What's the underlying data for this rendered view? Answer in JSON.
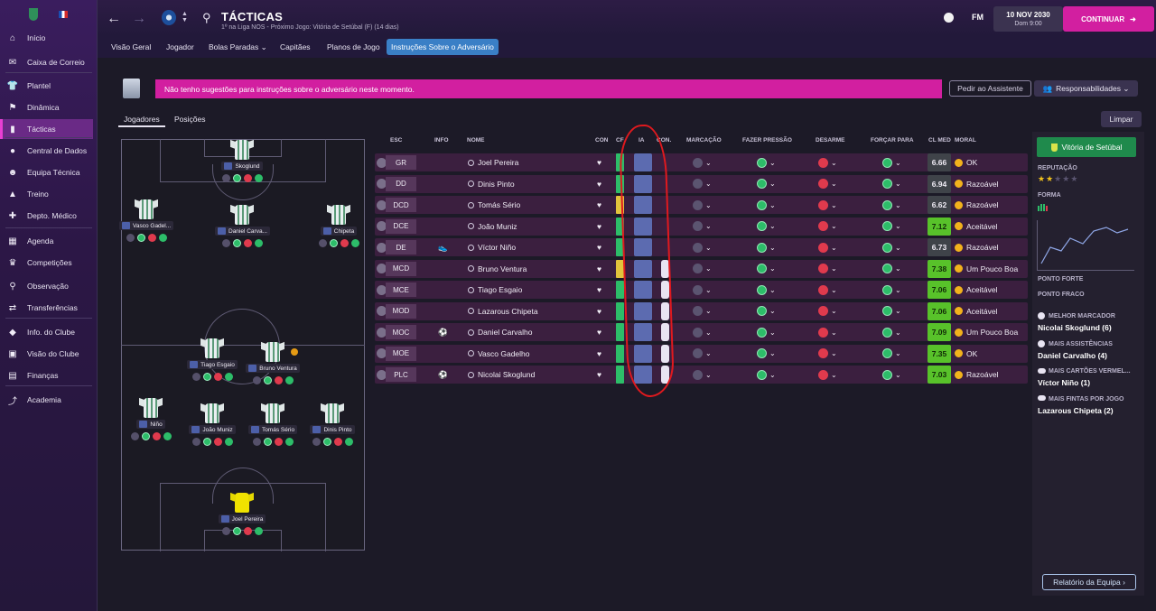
{
  "sidebar": {
    "items": [
      {
        "label": "Início",
        "icon": "home-icon"
      },
      {
        "label": "Caixa de Correio",
        "icon": "inbox-icon"
      },
      {
        "label": "Plantel",
        "icon": "shirt-icon"
      },
      {
        "label": "Dinâmica",
        "icon": "dynamics-icon"
      },
      {
        "label": "Tácticas",
        "icon": "tactics-icon"
      },
      {
        "label": "Central de Dados",
        "icon": "data-icon"
      },
      {
        "label": "Equipa Técnica",
        "icon": "staff-icon"
      },
      {
        "label": "Treino",
        "icon": "training-icon"
      },
      {
        "label": "Depto. Médico",
        "icon": "medical-icon"
      },
      {
        "label": "Agenda",
        "icon": "calendar-icon"
      },
      {
        "label": "Competições",
        "icon": "trophy-icon"
      },
      {
        "label": "Observação",
        "icon": "scouting-icon"
      },
      {
        "label": "Transferências",
        "icon": "transfers-icon"
      },
      {
        "label": "Info. do Clube",
        "icon": "club-info-icon"
      },
      {
        "label": "Visão do Clube",
        "icon": "club-vision-icon"
      },
      {
        "label": "Finanças",
        "icon": "finances-icon"
      },
      {
        "label": "Academia",
        "icon": "academy-icon"
      }
    ]
  },
  "header": {
    "title": "TÁCTICAS",
    "subtitle": "1º na Liga NOS - Próximo Jogo: Vitória de Setúbal (F) (14 dias)",
    "fm_label": "FM",
    "date": "10 NOV 2030",
    "time": "Dom 9:00",
    "continue_label": "CONTINUAR"
  },
  "tabs": [
    {
      "label": "Visão Geral",
      "active": false
    },
    {
      "label": "Jogador",
      "active": false
    },
    {
      "label": "Bolas Paradas ⌄",
      "active": false
    },
    {
      "label": "Capitães",
      "active": false
    },
    {
      "label": "Planos de Jogo",
      "active": false
    },
    {
      "label": "Instruções Sobre o Adversário",
      "active": true
    }
  ],
  "assistant": {
    "message": "Não tenho sugestões para instruções sobre o adversário neste momento.",
    "ask_label": "Pedir ao Assistente",
    "responsibilities_label": "Responsabilidades ⌄"
  },
  "subtabs": {
    "players": "Jogadores",
    "positions": "Posições",
    "clear": "Limpar"
  },
  "pitch_players": [
    {
      "name": "Skoglund",
      "gk": false
    },
    {
      "name": "Vasco Gadel...",
      "gk": false
    },
    {
      "name": "Daniel Carva...",
      "gk": false
    },
    {
      "name": "Chipeta",
      "gk": false
    },
    {
      "name": "Tiago Esgaio",
      "gk": false
    },
    {
      "name": "Bruno Ventura",
      "gk": false
    },
    {
      "name": "Niño",
      "gk": false
    },
    {
      "name": "João Muniz",
      "gk": false
    },
    {
      "name": "Tomás Sério",
      "gk": false
    },
    {
      "name": "Dinis Pinto",
      "gk": false
    },
    {
      "name": "Joel Pereira",
      "gk": true
    }
  ],
  "table": {
    "headers": [
      "ESC",
      "INFO",
      "NOME",
      "CON",
      "CF",
      "IA",
      "CON.",
      "MARCAÇÃO",
      "FAZER PRESSÃO",
      "DESARME",
      "FORÇAR PARA",
      "CL MED",
      "MORAL"
    ],
    "rows": [
      {
        "pos": "GR",
        "name": "Joel Pereira",
        "cf": "g",
        "con": false,
        "info": "",
        "clmed": "6.66",
        "hi": false,
        "moral": "OK"
      },
      {
        "pos": "DD",
        "name": "Dinis Pinto",
        "cf": "g",
        "con": false,
        "info": "",
        "clmed": "6.94",
        "hi": false,
        "moral": "Razoável"
      },
      {
        "pos": "DCD",
        "name": "Tomás Sério",
        "cf": "y",
        "con": false,
        "info": "",
        "clmed": "6.62",
        "hi": false,
        "moral": "Razoável"
      },
      {
        "pos": "DCE",
        "name": "João Muniz",
        "cf": "g",
        "con": false,
        "info": "",
        "clmed": "7.12",
        "hi": true,
        "moral": "Aceitável"
      },
      {
        "pos": "DE",
        "name": "Víctor Niño",
        "cf": "g",
        "con": false,
        "info": "boot",
        "clmed": "6.73",
        "hi": false,
        "moral": "Razoável"
      },
      {
        "pos": "MCD",
        "name": "Bruno Ventura",
        "cf": "y",
        "con": true,
        "info": "",
        "clmed": "7.38",
        "hi": true,
        "moral": "Um Pouco Boa"
      },
      {
        "pos": "MCE",
        "name": "Tiago Esgaio",
        "cf": "g",
        "con": true,
        "info": "",
        "clmed": "7.06",
        "hi": true,
        "moral": "Aceitável"
      },
      {
        "pos": "MOD",
        "name": "Lazarous Chipeta",
        "cf": "g",
        "con": true,
        "info": "",
        "clmed": "7.06",
        "hi": true,
        "moral": "Aceitável"
      },
      {
        "pos": "MOC",
        "name": "Daniel Carvalho",
        "cf": "g",
        "con": true,
        "info": "assist",
        "clmed": "7.09",
        "hi": true,
        "moral": "Um Pouco Boa"
      },
      {
        "pos": "MOE",
        "name": "Vasco Gadelho",
        "cf": "g",
        "con": true,
        "info": "",
        "clmed": "7.35",
        "hi": true,
        "moral": "OK"
      },
      {
        "pos": "PLC",
        "name": "Nicolai Skoglund",
        "cf": "g",
        "con": true,
        "info": "ball",
        "clmed": "7.03",
        "hi": true,
        "moral": "Razoável"
      }
    ]
  },
  "right_panel": {
    "club": "Vitória de Setúbal",
    "reputation_label": "REPUTAÇÃO",
    "reputation_stars": 2,
    "form_label": "FORMA",
    "form_values": [
      3,
      1,
      2,
      1,
      3
    ],
    "strong_label": "PONTO FORTE",
    "weak_label": "PONTO FRACO",
    "top_scorer_label": "MELHOR MARCADOR",
    "top_scorer": "Nicolai Skoglund (6)",
    "assists_label": "MAIS ASSISTÊNCIAS",
    "assists": "Daniel Carvalho (4)",
    "cards_label": "MAIS CARTÕES VERMEL...",
    "cards": "Víctor Niño (1)",
    "dribbles_label": "MAIS FINTAS POR JOGO",
    "dribbles": "Lazarous Chipeta (2)",
    "report_label": "Relatório da Equipa ›"
  },
  "colors": {
    "accent": "#d21fa0",
    "active_tab": "#3a7fc6",
    "club_green": "#1f8a4c",
    "annotation": "#e0191e"
  }
}
